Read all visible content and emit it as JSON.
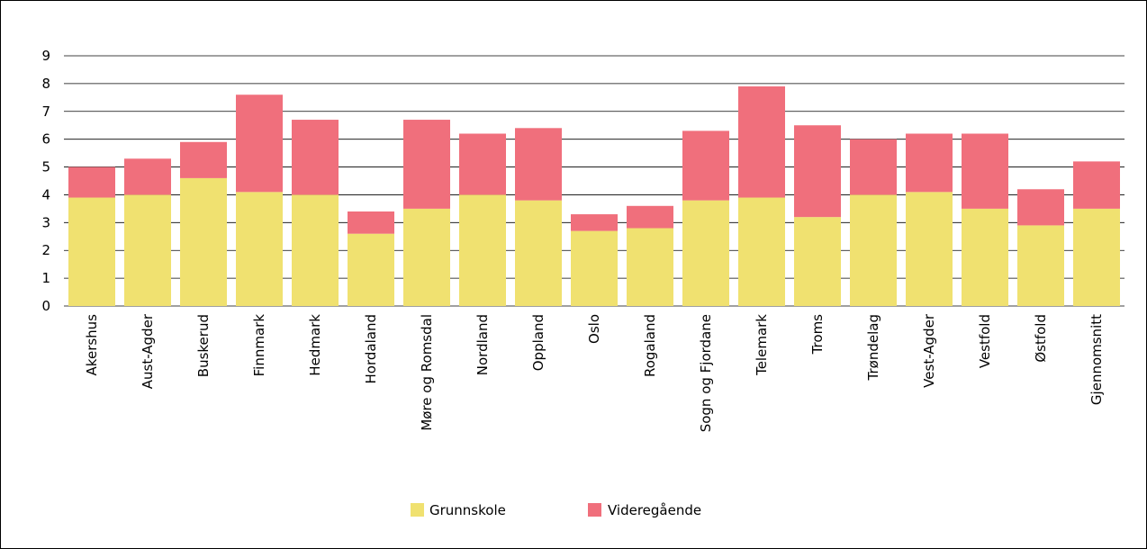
{
  "chart_data": {
    "type": "bar",
    "stacked": true,
    "title": "",
    "xlabel": "",
    "ylabel": "",
    "ylim": [
      0,
      9
    ],
    "yticks": [
      0,
      1,
      2,
      3,
      4,
      5,
      6,
      7,
      8,
      9
    ],
    "grid": "horizontal",
    "legend_position": "bottom",
    "categories": [
      "Akershus",
      "Aust-Agder",
      "Buskerud",
      "Finnmark",
      "Hedmark",
      "Hordaland",
      "Møre og Romsdal",
      "Nordland",
      "Oppland",
      "Oslo",
      "Rogaland",
      "Sogn og Fjordane",
      "Telemark",
      "Troms",
      "Trøndelag",
      "Vest-Agder",
      "Vestfold",
      "Østfold",
      "Gjennomsnitt"
    ],
    "series": [
      {
        "name": "Grunnskole",
        "color": "#f0e170",
        "values": [
          3.9,
          4.0,
          4.6,
          4.1,
          4.0,
          2.6,
          3.5,
          4.0,
          3.8,
          2.7,
          2.8,
          3.8,
          3.9,
          3.2,
          4.0,
          4.1,
          3.5,
          2.9,
          3.5
        ]
      },
      {
        "name": "Videregående",
        "color": "#f06f7c",
        "values": [
          1.1,
          1.3,
          1.3,
          3.5,
          2.7,
          0.8,
          3.2,
          2.2,
          2.6,
          0.6,
          0.8,
          2.5,
          4.0,
          3.3,
          2.0,
          2.1,
          2.7,
          1.3,
          1.7
        ]
      }
    ]
  }
}
